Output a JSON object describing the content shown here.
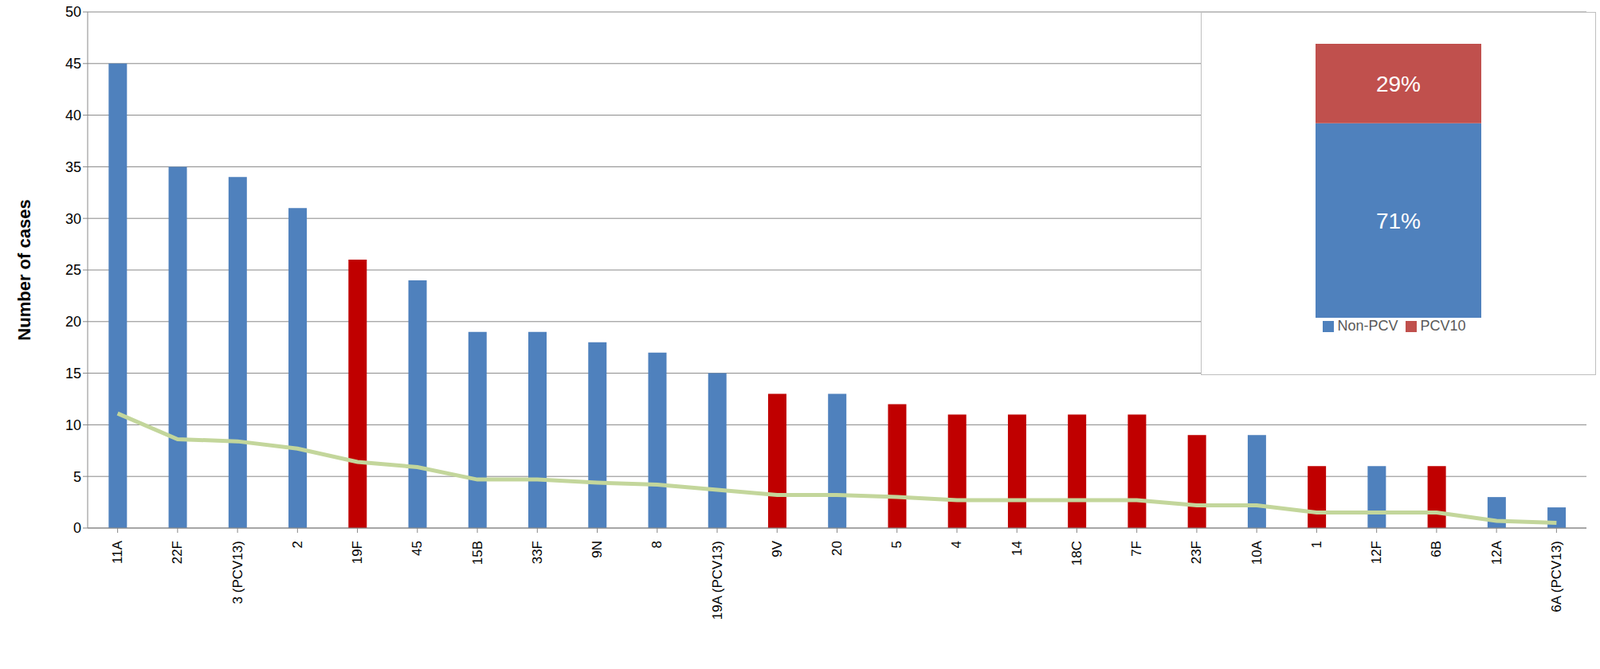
{
  "chart_data": [
    {
      "type": "bar",
      "y_label": "Number of cases",
      "categories": [
        "11A",
        "22F",
        "3 (PCV13)",
        "2",
        "19F",
        "45",
        "15B",
        "33F",
        "9N",
        "8",
        "19A (PCV13)",
        "9V",
        "20",
        "5",
        "4",
        "14",
        "18C",
        "7F",
        "23F",
        "10A",
        "1",
        "12F",
        "6B",
        "12A",
        "6A (PCV13)"
      ],
      "series": [
        {
          "type": "bar",
          "colors": [
            "#4f81bd",
            "#4f81bd",
            "#4f81bd",
            "#4f81bd",
            "#c00000",
            "#4f81bd",
            "#4f81bd",
            "#4f81bd",
            "#4f81bd",
            "#4f81bd",
            "#4f81bd",
            "#c00000",
            "#4f81bd",
            "#c00000",
            "#c00000",
            "#c00000",
            "#c00000",
            "#c00000",
            "#c00000",
            "#4f81bd",
            "#c00000",
            "#4f81bd",
            "#c00000",
            "#4f81bd",
            "#4f81bd"
          ],
          "values": [
            45,
            35,
            34,
            31,
            26,
            24,
            19,
            19,
            18,
            17,
            15,
            13,
            13,
            12,
            11,
            11,
            11,
            11,
            9,
            9,
            6,
            6,
            6,
            3,
            2
          ]
        },
        {
          "type": "line",
          "color": "#c3d69b",
          "values": [
            11.1,
            8.6,
            8.4,
            7.7,
            6.4,
            5.9,
            4.7,
            4.7,
            4.4,
            4.2,
            3.7,
            3.2,
            3.2,
            3.0,
            2.7,
            2.7,
            2.7,
            2.7,
            2.2,
            2.2,
            1.5,
            1.5,
            1.5,
            0.7,
            0.5
          ]
        }
      ],
      "ylim": [
        0,
        50
      ],
      "yticks": [
        0,
        5,
        10,
        15,
        20,
        25,
        30,
        35,
        40,
        45,
        50
      ],
      "grid": true
    },
    {
      "type": "bar",
      "stacked": true,
      "categories": [
        null
      ],
      "series": [
        {
          "name": "Non-PCV",
          "color": "#4f81bd",
          "values": [
            71
          ],
          "value_labels": [
            "71%"
          ]
        },
        {
          "name": "PCV10",
          "color": "#c0504d",
          "values": [
            29
          ],
          "value_labels": [
            "29%"
          ]
        }
      ],
      "ylim": [
        0,
        100
      ],
      "data_labels": true,
      "legend": "bottom",
      "tick_labels": false
    }
  ]
}
